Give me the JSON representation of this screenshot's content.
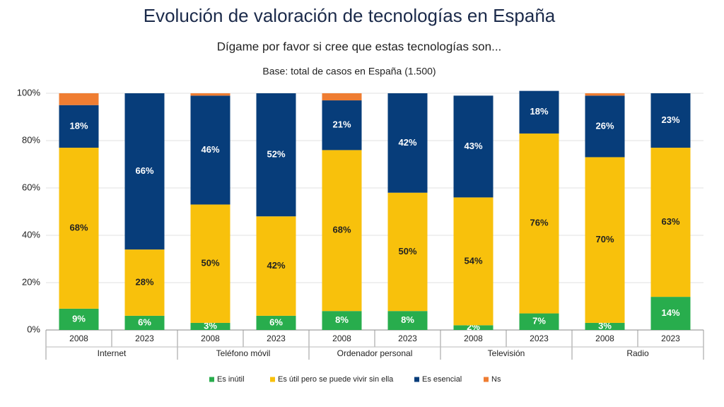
{
  "chart_data": {
    "type": "stacked_bar",
    "title": "Evolución de valoración de tecnologías en España",
    "subtitle": "Dígame por favor si cree que estas tecnologías son...",
    "note": "Base: total de casos en España (1.500)",
    "categories": [
      "2008",
      "2023",
      "2008",
      "2023",
      "2008",
      "2023",
      "2008",
      "2023",
      "2008",
      "2023"
    ],
    "groups": [
      "Internet",
      "Teléfono móvil",
      "Ordenador personal",
      "Televisión",
      "Radio"
    ],
    "ylim": [
      0,
      100
    ],
    "yticks": [
      {
        "value": 0,
        "label": "0%"
      },
      {
        "value": 20,
        "label": "20%"
      },
      {
        "value": 40,
        "label": "40%"
      },
      {
        "value": 60,
        "label": "60%"
      },
      {
        "value": 80,
        "label": "80%"
      },
      {
        "value": 100,
        "label": "100%"
      }
    ],
    "grid": true,
    "legend": "bottom",
    "series": [
      {
        "name": "Es inútil",
        "color": "#28ad4d",
        "values": [
          9,
          6,
          3,
          6,
          8,
          8,
          2,
          7,
          3,
          14
        ],
        "value_labels": [
          "9%",
          "6%",
          "3%",
          "6%",
          "8%",
          "8%",
          "2%",
          "7%",
          "3%",
          "14%"
        ]
      },
      {
        "name": "Es útil pero se puede vivir sin ella",
        "color": "#f8c10c",
        "values": [
          68,
          28,
          50,
          42,
          68,
          50,
          54,
          76,
          70,
          63
        ],
        "value_labels": [
          "68%",
          "28%",
          "50%",
          "42%",
          "68%",
          "50%",
          "54%",
          "76%",
          "70%",
          "63%"
        ]
      },
      {
        "name": "Es esencial",
        "color": "#073d7a",
        "values": [
          18,
          66,
          46,
          52,
          21,
          42,
          43,
          18,
          26,
          23
        ],
        "value_labels": [
          "18%",
          "66%",
          "46%",
          "52%",
          "21%",
          "42%",
          "43%",
          "18%",
          "26%",
          "23%"
        ]
      },
      {
        "name": "Ns",
        "color": "#ef7d32",
        "values": [
          5,
          0,
          1,
          0,
          3,
          0,
          0,
          0,
          1,
          0
        ]
      }
    ]
  }
}
